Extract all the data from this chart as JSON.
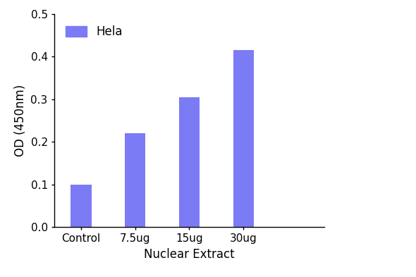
{
  "categories": [
    "Control",
    "7.5ug",
    "15ug",
    "30ug"
  ],
  "values": [
    0.1,
    0.22,
    0.305,
    0.415
  ],
  "bar_color": "#7B7BF5",
  "xlabel": "Nuclear Extract",
  "ylabel": "OD (450nm)",
  "ylim": [
    0,
    0.5
  ],
  "yticks": [
    0.0,
    0.1,
    0.2,
    0.3,
    0.4,
    0.5
  ],
  "legend_label": "Hela",
  "legend_color": "#7B7BF5",
  "bar_width": 0.38,
  "background_color": "#ffffff",
  "xlabel_fontsize": 12,
  "ylabel_fontsize": 12,
  "tick_fontsize": 11,
  "legend_fontsize": 12,
  "xlim": [
    -0.5,
    4.5
  ]
}
